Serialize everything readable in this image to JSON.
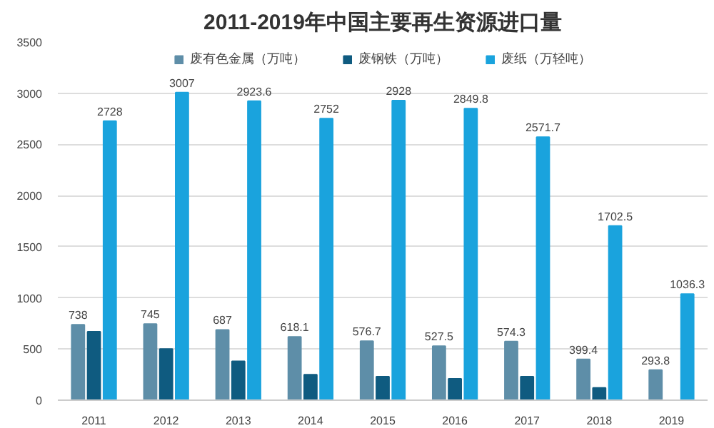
{
  "chart_data": {
    "type": "bar",
    "title": "2011-2019年中国主要再生资源进口量",
    "categories": [
      "2011",
      "2012",
      "2013",
      "2014",
      "2015",
      "2016",
      "2017",
      "2018",
      "2019"
    ],
    "series": [
      {
        "name": "废有色金属（万吨）",
        "color": "#5e8ea8",
        "values": [
          738,
          745,
          687,
          618.1,
          576.7,
          527.5,
          574.3,
          399.4,
          293.8
        ],
        "value_labels": [
          "738",
          "745",
          "687",
          "618.1",
          "576.7",
          "527.5",
          "574.3",
          "399.4",
          "293.8"
        ]
      },
      {
        "name": "废钢铁（万吨）",
        "color": "#0f5b80",
        "values": [
          670,
          500,
          380,
          250,
          230,
          210,
          230,
          120,
          null
        ]
      },
      {
        "name": "废纸（万轻吨）",
        "color": "#1aa3dd",
        "values": [
          2728,
          3007,
          2923.6,
          2752,
          2928,
          2849.8,
          2571.7,
          1702.5,
          1036.3
        ],
        "value_labels": [
          "2728",
          "3007",
          "2923.6",
          "2752",
          "2928",
          "2849.8",
          "2571.7",
          "1702.5",
          "1036.3"
        ]
      }
    ],
    "ylim": [
      0,
      3500
    ],
    "yticks": [
      0,
      500,
      1000,
      1500,
      2000,
      2500,
      3000,
      3500
    ],
    "grid": "y",
    "legend": "top"
  }
}
